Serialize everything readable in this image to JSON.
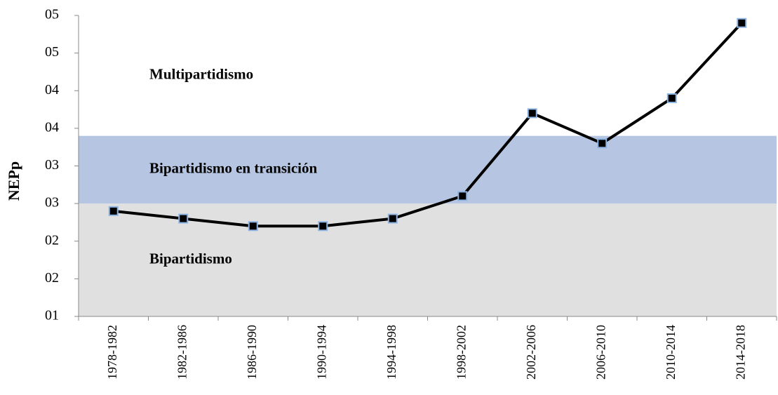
{
  "chart_data": {
    "type": "line",
    "y_label": "NEPp",
    "categories": [
      "1978-1982",
      "1982-1986",
      "1986-1990",
      "1990-1994",
      "1994-1998",
      "1998-2002",
      "2002-2006",
      "2006-2010",
      "2010-2014",
      "2014-2018"
    ],
    "series": [
      {
        "name": "NEPp",
        "color": "#000000",
        "marker_color": "#000000",
        "marker_edge": "#8eb4e3",
        "values": [
          2.4,
          2.3,
          2.2,
          2.2,
          2.3,
          2.6,
          3.7,
          3.3,
          3.9,
          4.9
        ]
      }
    ],
    "bands": [
      {
        "name": "Bipartidismo",
        "from": 1,
        "to": 2.5,
        "color": "#e0e0e0"
      },
      {
        "name": "Bipartidismo en transición",
        "from": 2.5,
        "to": 3.4,
        "color": "#b6c6e2"
      },
      {
        "name": "Multipartidismo",
        "from": 3.4,
        "to": 5,
        "color": "#ffffff"
      }
    ],
    "ylim": [
      1,
      5
    ],
    "yticks": [
      {
        "value": 1,
        "label": "01"
      },
      {
        "value": 1.5,
        "label": "02"
      },
      {
        "value": 2,
        "label": "02"
      },
      {
        "value": 2.5,
        "label": "03"
      },
      {
        "value": 3,
        "label": "03"
      },
      {
        "value": 3.5,
        "label": "04"
      },
      {
        "value": 4,
        "label": "04"
      },
      {
        "value": 4.5,
        "label": "05"
      },
      {
        "value": 5,
        "label": "05"
      }
    ]
  }
}
